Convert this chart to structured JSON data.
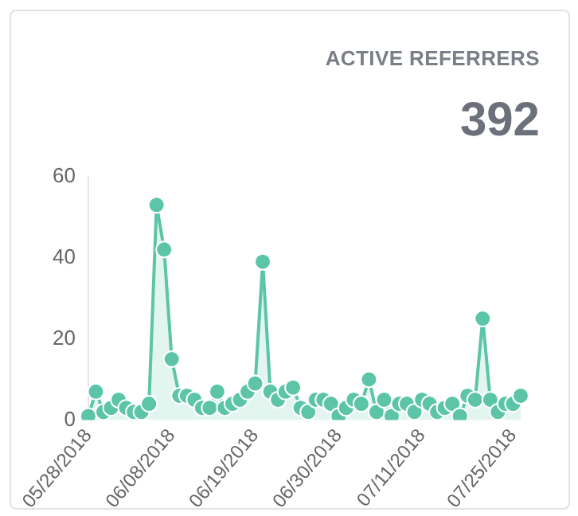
{
  "chart_data": {
    "type": "area",
    "title": "ACTIVE REFERRERS",
    "subtitle": "392",
    "categories": [
      "05/28/2018",
      null,
      null,
      null,
      null,
      null,
      null,
      null,
      null,
      null,
      null,
      "06/08/2018",
      null,
      null,
      null,
      null,
      null,
      null,
      null,
      null,
      null,
      null,
      "06/19/2018",
      null,
      null,
      null,
      null,
      null,
      null,
      null,
      null,
      null,
      null,
      "06/30/2018",
      null,
      null,
      null,
      null,
      null,
      null,
      null,
      null,
      null,
      null,
      "07/11/2018",
      null,
      null,
      null,
      null,
      null,
      null,
      null,
      null,
      null,
      null,
      null,
      "07/25/2018",
      null
    ],
    "series": [
      {
        "color": "#5cc5a8",
        "values": [
          1,
          7,
          2,
          3,
          5,
          3,
          2,
          2,
          4,
          53,
          42,
          15,
          6,
          6,
          5,
          3,
          3,
          7,
          3,
          4,
          5,
          7,
          9,
          39,
          7,
          5,
          7,
          8,
          3,
          2,
          5,
          5,
          4,
          1,
          3,
          5,
          4,
          10,
          2,
          5,
          1,
          4,
          4,
          2,
          5,
          4,
          2,
          3,
          4,
          1,
          6,
          5,
          25,
          5,
          2,
          4,
          4,
          6
        ]
      }
    ],
    "ylim": [
      0,
      60
    ],
    "yticks": [
      0,
      20,
      40,
      60
    ],
    "grid": false,
    "legend": false,
    "marker": "circle"
  }
}
